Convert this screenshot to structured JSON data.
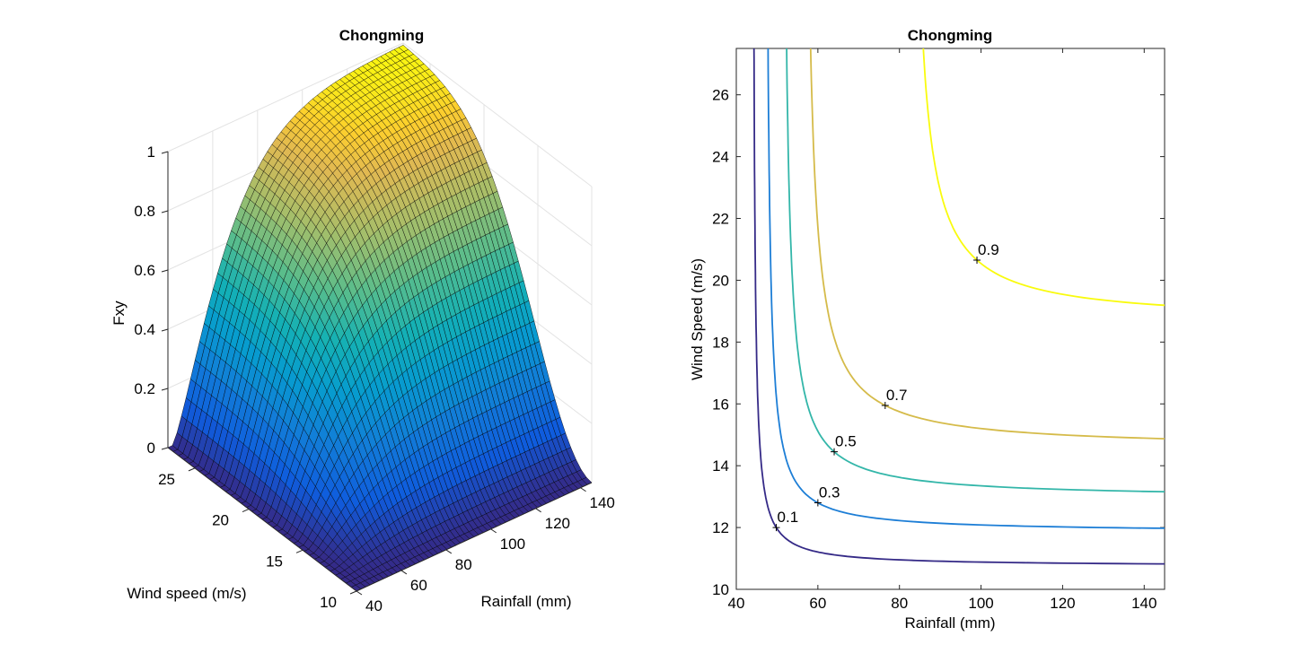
{
  "chart_data": [
    {
      "type": "surface",
      "title": "Chongming",
      "xlabel": "Rainfall (mm)",
      "ylabel": "Wind speed (m/s)",
      "zlabel": "Fxy",
      "xlim": [
        40,
        145
      ],
      "ylim": [
        10,
        27.5
      ],
      "zlim": [
        0,
        1
      ],
      "x_ticks": [
        "40",
        "60",
        "80",
        "100",
        "120",
        "140"
      ],
      "y_ticks": [
        "10",
        "15",
        "20",
        "25"
      ],
      "z_ticks": [
        "0",
        "0.2",
        "0.4",
        "0.6",
        "0.8",
        "1"
      ],
      "grid": true,
      "colormap": "parula",
      "surface_model": {
        "x": [
          40,
          145
        ],
        "y": [
          10,
          27.5
        ],
        "description_values": [
          {
            "x": 40,
            "y": 10,
            "z": 0.0
          },
          {
            "x": 145,
            "y": 27.5,
            "z": 1.0
          },
          {
            "x": 145,
            "y": 10,
            "z": 0.0
          },
          {
            "x": 40,
            "y": 27.5,
            "z": 0.0
          }
        ]
      }
    },
    {
      "type": "contour",
      "title": "Chongming",
      "xlabel": "Rainfall (mm)",
      "ylabel": "Wind Speed (m/s)",
      "xlim": [
        40,
        145
      ],
      "ylim": [
        10,
        27.5
      ],
      "x_ticks": [
        "40",
        "60",
        "80",
        "100",
        "120",
        "140"
      ],
      "y_ticks": [
        "10",
        "12",
        "14",
        "16",
        "18",
        "20",
        "22",
        "24",
        "26"
      ],
      "levels": [
        {
          "level": "0.1",
          "color": "#352a87",
          "x_asym": 43.9,
          "y_asym": 10.75,
          "label_point": [
            49.8,
            12.0
          ]
        },
        {
          "level": "0.3",
          "color": "#1d7ed6",
          "x_asym": 47.0,
          "y_asym": 11.85,
          "label_point": [
            60.0,
            12.8
          ]
        },
        {
          "level": "0.5",
          "color": "#33b6a9",
          "x_asym": 51.0,
          "y_asym": 12.95,
          "label_point": [
            64.0,
            14.45
          ]
        },
        {
          "level": "0.7",
          "color": "#d5bb4a",
          "x_asym": 56.0,
          "y_asym": 14.55,
          "label_point": [
            76.5,
            15.95
          ]
        },
        {
          "level": "0.9",
          "color": "#f9fb0e",
          "x_asym": 82.0,
          "y_asym": 18.65,
          "label_point": [
            99.0,
            20.65
          ]
        }
      ]
    }
  ]
}
